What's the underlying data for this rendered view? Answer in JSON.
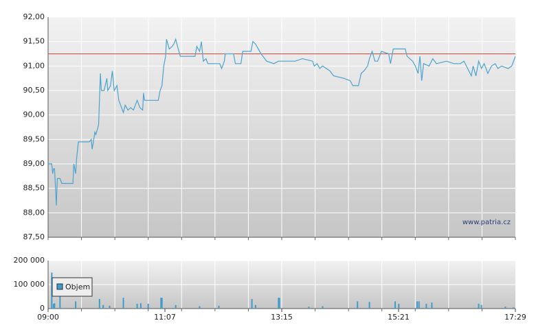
{
  "chart_data": [
    {
      "type": "line",
      "color": "#4aa3d0",
      "grid": true,
      "source": "www.patria.cz",
      "reference_line": {
        "value": 91.25,
        "color": "#e0463a"
      },
      "xlim": [
        0,
        509
      ],
      "ylim": [
        87.5,
        92
      ],
      "yticks": [
        {
          "value": 87.5,
          "label": "87,50"
        },
        {
          "value": 88,
          "label": "88,00"
        },
        {
          "value": 88.5,
          "label": "88,50"
        },
        {
          "value": 89,
          "label": "89,00"
        },
        {
          "value": 89.5,
          "label": "89,50"
        },
        {
          "value": 90,
          "label": "90,00"
        },
        {
          "value": 90.5,
          "label": "90,50"
        },
        {
          "value": 91,
          "label": "91,00"
        },
        {
          "value": 91.5,
          "label": "91,50"
        },
        {
          "value": 92,
          "label": "92,00"
        }
      ],
      "x": [
        0,
        4,
        5,
        6,
        7,
        9,
        10,
        13,
        15,
        27,
        28,
        30,
        31,
        33,
        45,
        47,
        48,
        51,
        52,
        55,
        57,
        58,
        61,
        64,
        65,
        68,
        70,
        72,
        75,
        77,
        80,
        82,
        84,
        87,
        90,
        93,
        97,
        100,
        103,
        104,
        105,
        120,
        122,
        124,
        126,
        128,
        129,
        132,
        135,
        137,
        139,
        141,
        144,
        160,
        162,
        165,
        167,
        169,
        172,
        174,
        187,
        189,
        192,
        193,
        202,
        204,
        210,
        212,
        221,
        223,
        226,
        229,
        232,
        236,
        238,
        246,
        251,
        269,
        277,
        288,
        290,
        293,
        296,
        299,
        307,
        311,
        322,
        329,
        332,
        338,
        341,
        344,
        348,
        350,
        353,
        356,
        359,
        363,
        371,
        373,
        376,
        389,
        391,
        397,
        400,
        403,
        405,
        407,
        409,
        415,
        419,
        423,
        434,
        442,
        449,
        453,
        457,
        461,
        463,
        466,
        469,
        472,
        475,
        479,
        483,
        487,
        490,
        494,
        501,
        505,
        509
      ],
      "values": [
        89.0,
        89.0,
        88.8,
        88.9,
        88.9,
        88.15,
        88.7,
        88.7,
        88.6,
        88.6,
        89.0,
        88.8,
        89.1,
        89.45,
        89.45,
        89.5,
        89.3,
        89.65,
        89.6,
        89.8,
        90.85,
        90.5,
        90.5,
        90.75,
        90.5,
        90.6,
        90.9,
        90.5,
        90.6,
        90.3,
        90.15,
        90.05,
        90.2,
        90.1,
        90.15,
        90.1,
        90.3,
        90.15,
        90.1,
        90.45,
        90.3,
        90.3,
        90.5,
        90.6,
        91.0,
        91.2,
        91.55,
        91.35,
        91.4,
        91.45,
        91.55,
        91.4,
        91.2,
        91.2,
        91.4,
        91.3,
        91.5,
        91.1,
        91.15,
        91.05,
        91.05,
        90.95,
        91.1,
        91.25,
        91.25,
        91.05,
        91.05,
        91.3,
        91.3,
        91.5,
        91.45,
        91.35,
        91.25,
        91.15,
        91.1,
        91.05,
        91.1,
        91.1,
        91.15,
        91.1,
        91.0,
        91.05,
        90.95,
        91.0,
        90.9,
        90.8,
        90.75,
        90.7,
        90.6,
        90.6,
        90.85,
        90.9,
        91.0,
        91.15,
        91.3,
        91.1,
        91.1,
        91.3,
        91.25,
        91.05,
        91.35,
        91.35,
        91.2,
        91.1,
        91.0,
        90.85,
        91.2,
        90.7,
        91.05,
        91.0,
        91.15,
        91.05,
        91.1,
        91.05,
        91.05,
        91.1,
        90.95,
        90.8,
        91.0,
        90.8,
        91.1,
        90.95,
        91.05,
        90.85,
        91.0,
        91.05,
        90.95,
        91.0,
        90.95,
        91.0,
        91.2
      ]
    },
    {
      "type": "bar",
      "grid": true,
      "legend": "upper left",
      "xlim": [
        0,
        509
      ],
      "xticks": [
        {
          "value": 0,
          "label": "09:00"
        },
        {
          "value": 127.25,
          "label": "11:07"
        },
        {
          "value": 254.5,
          "label": "13:15"
        },
        {
          "value": 381.75,
          "label": "15:21"
        },
        {
          "value": 509,
          "label": "17:29"
        }
      ],
      "ylim": [
        0,
        200000
      ],
      "yticks": [
        0,
        {
          "value": 100000,
          "label": "100 000"
        },
        {
          "value": 200000,
          "label": "200 000"
        }
      ],
      "x": [
        4,
        6,
        7,
        13,
        30,
        56,
        60,
        67,
        82,
        97,
        101,
        109,
        123,
        124,
        139,
        165,
        186,
        222,
        226,
        251,
        252,
        284,
        299,
        337,
        350,
        378,
        382,
        402,
        404,
        412,
        418,
        469,
        472,
        498,
        507
      ],
      "series": [
        {
          "name": "Objem",
          "color": "#3f9cc8",
          "values": [
            150000,
            20000,
            22000,
            65000,
            30000,
            40000,
            15000,
            12000,
            45000,
            20000,
            22000,
            20000,
            45000,
            45000,
            15000,
            10000,
            12000,
            40000,
            15000,
            45000,
            45000,
            8000,
            10000,
            30000,
            28000,
            30000,
            20000,
            30000,
            30000,
            20000,
            25000,
            20000,
            15000,
            8000,
            5000
          ]
        }
      ]
    }
  ]
}
